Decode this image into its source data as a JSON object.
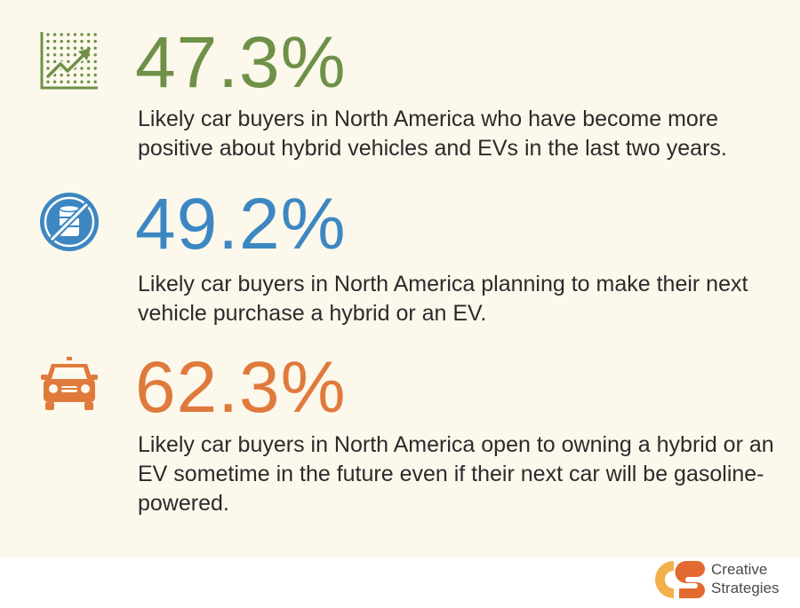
{
  "colors": {
    "green": "#6f9047",
    "blue": "#3c87c2",
    "orange": "#e07a3c",
    "panel_bg": "#fcf8ec",
    "text": "#2b2b2b",
    "logo_yellow": "#f2b14a",
    "logo_orange": "#e2692f"
  },
  "stats": [
    {
      "icon": "growth-chart-icon",
      "value": "47.3%",
      "description": "Likely car buyers in North America who have become more positive about hybrid vehicles and EVs in the last two years."
    },
    {
      "icon": "no-oil-barrel-icon",
      "value": "49.2%",
      "description": "Likely car buyers in North America planning to make their next vehicle purchase a hybrid or an EV."
    },
    {
      "icon": "car-icon",
      "value": "62.3%",
      "description": "Likely car buyers in North America open to owning a hybrid or an EV sometime in the future even if their next car will be gasoline-powered."
    }
  ],
  "logo": {
    "line1": "Creative",
    "line2": "Strategies"
  }
}
